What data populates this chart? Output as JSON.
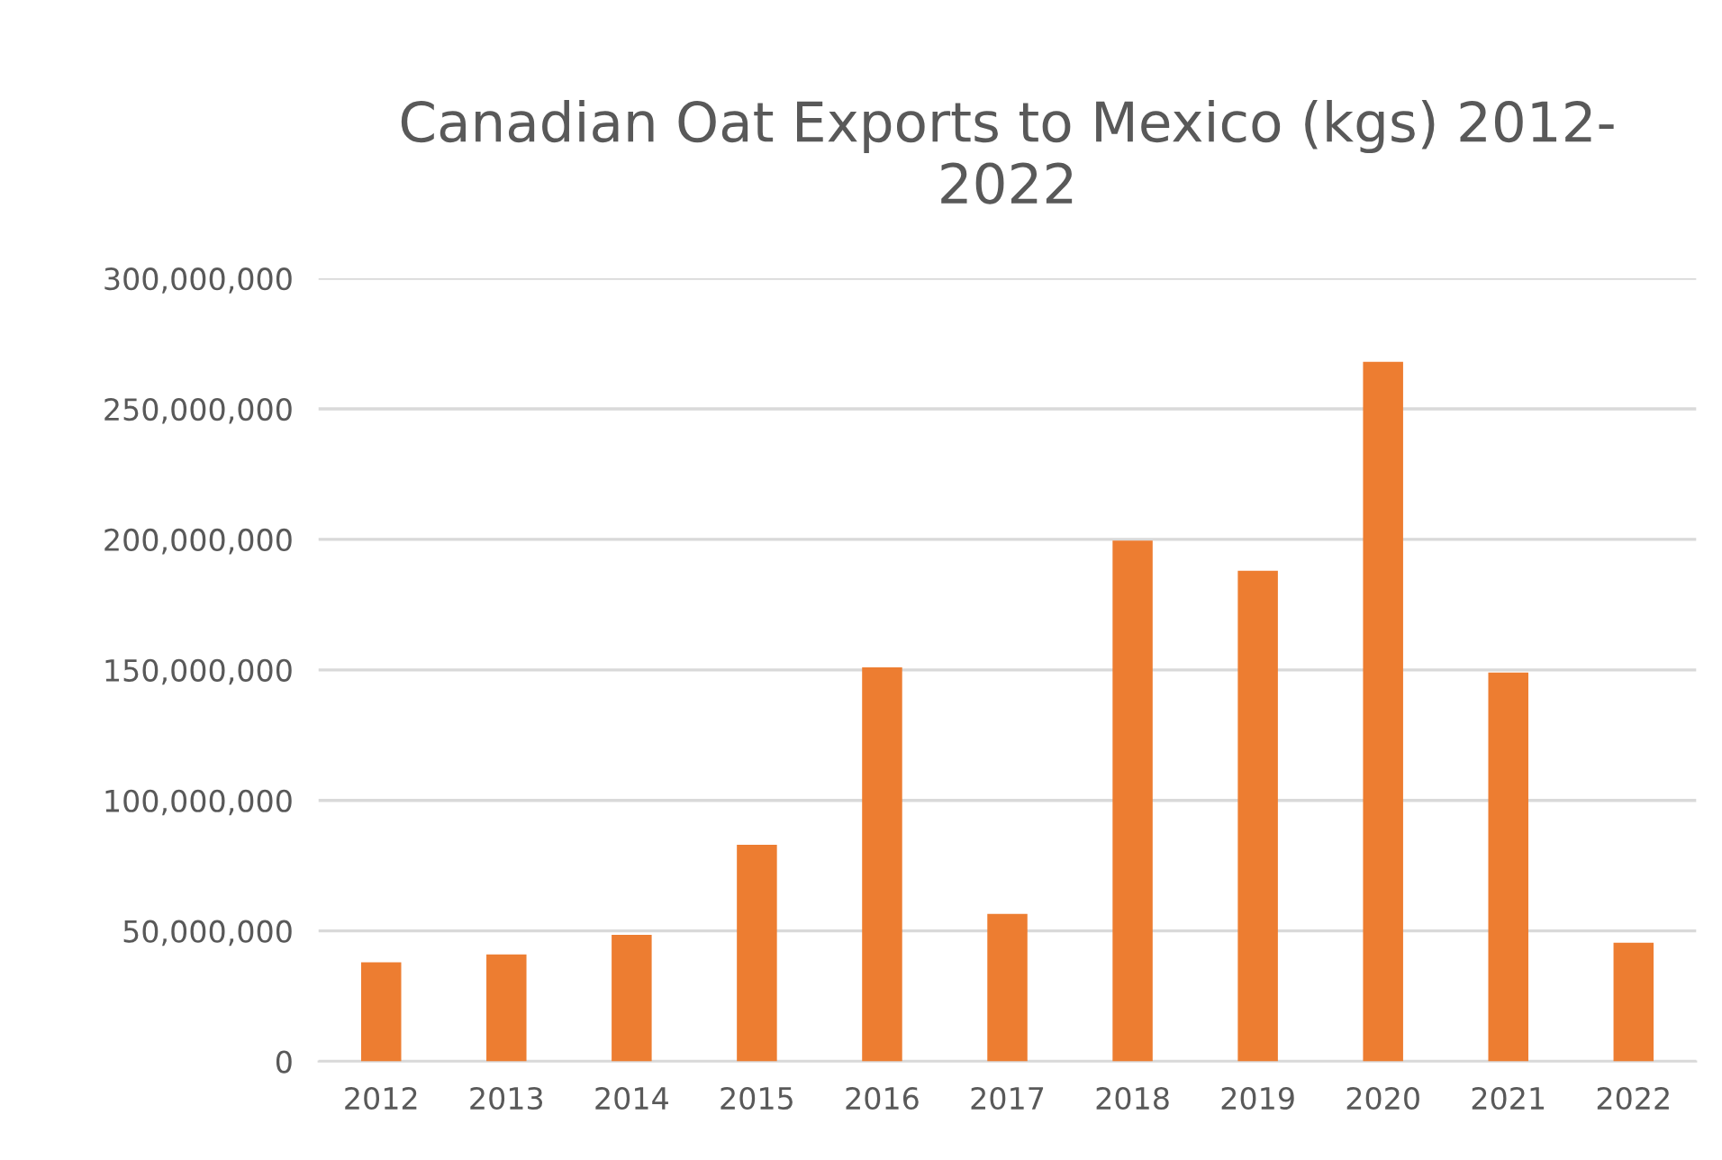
{
  "chart_data": {
    "type": "bar",
    "title": "Canadian Oat Exports to Mexico (kgs) 2012-\n2022",
    "categories": [
      "2012",
      "2013",
      "2014",
      "2015",
      "2016",
      "2017",
      "2018",
      "2019",
      "2020",
      "2021",
      "2022"
    ],
    "values": [
      38000000,
      41000000,
      48500000,
      83000000,
      151000000,
      56500000,
      199500000,
      188000000,
      268000000,
      149000000,
      45500000
    ],
    "color": "#ed7d31",
    "ylim": [
      0,
      300000000
    ],
    "yticks": [
      {
        "value": 0,
        "label": "0"
      },
      {
        "value": 50000000,
        "label": "50,000,000"
      },
      {
        "value": 100000000,
        "label": "100,000,000"
      },
      {
        "value": 150000000,
        "label": "150,000,000"
      },
      {
        "value": 200000000,
        "label": "200,000,000"
      },
      {
        "value": 250000000,
        "label": "250,000,000"
      },
      {
        "value": 300000000,
        "label": "300,000,000"
      }
    ],
    "grid": "y"
  }
}
